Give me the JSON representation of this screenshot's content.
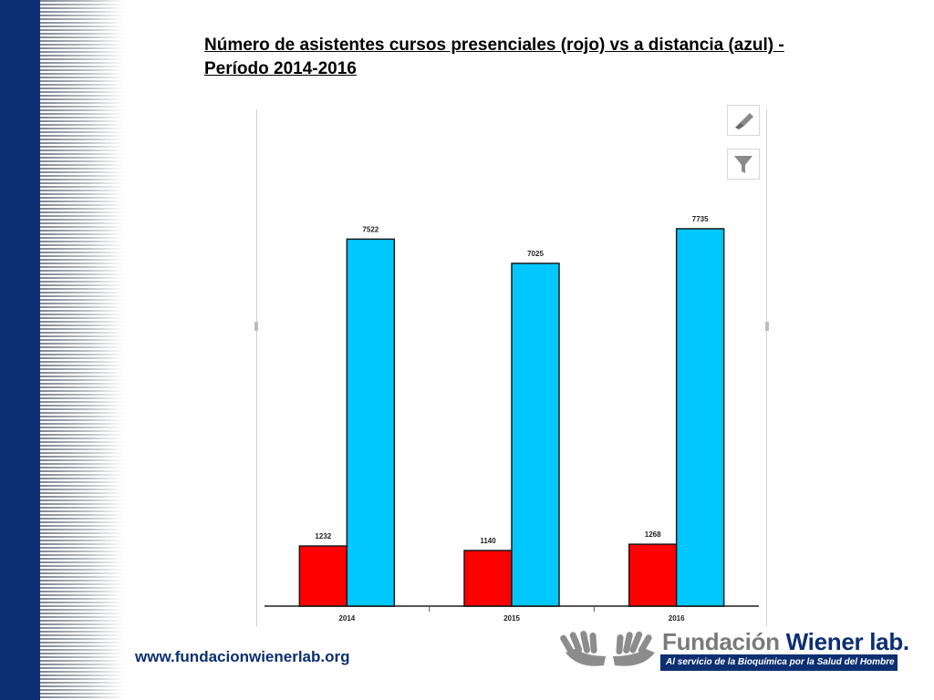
{
  "slide": {
    "title": "Número de asistentes cursos presenciales (rojo) vs a distancia (azul)  - Período 2014-2016",
    "footer_url": "www.fundacionwienerlab.org",
    "logo": {
      "name_part1": "Fundación ",
      "name_part2": "Wiener lab.",
      "tagline": "Al servicio de la Bioquímica por la Salud del Hombre"
    }
  },
  "toolbar": {
    "brush_icon": "paintbrush-icon",
    "filter_icon": "filter-icon"
  },
  "colors": {
    "presenciales": "#ff0000",
    "a_distancia": "#00c8ff",
    "brand": "#0b2f72"
  },
  "chart_data": {
    "type": "bar",
    "title": "Número de asistentes cursos presenciales (rojo) vs a distancia (azul)  - Período 2014-2016",
    "categories": [
      "2014",
      "2015",
      "2016"
    ],
    "series": [
      {
        "values": [
          1232,
          1140,
          1268
        ],
        "color": "#ff0000"
      },
      {
        "values": [
          7522,
          7025,
          7735
        ],
        "color": "#00c8ff"
      }
    ],
    "data_labels": [
      [
        "1232",
        "1140",
        "1268"
      ],
      [
        "7522",
        "7025",
        "7735"
      ]
    ],
    "ylim": [
      0,
      8500
    ],
    "xlabel": "",
    "ylabel": "",
    "grid": false,
    "legend": "none"
  }
}
